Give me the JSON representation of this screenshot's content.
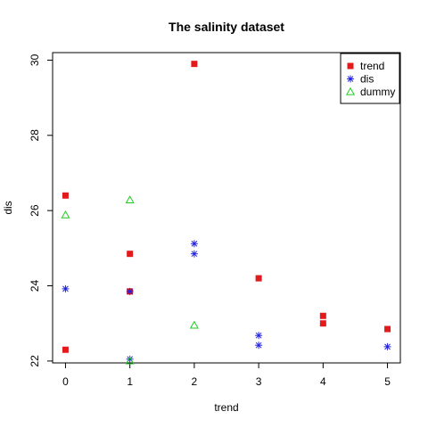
{
  "chart_data": {
    "type": "scatter",
    "title": "The salinity dataset",
    "xlabel": "trend",
    "ylabel": "dis",
    "xlim": [
      -0.2,
      5.2
    ],
    "ylim": [
      21.95,
      30.2
    ],
    "x_ticks": [
      0,
      1,
      2,
      3,
      4,
      5
    ],
    "y_ticks": [
      22,
      24,
      26,
      28,
      30
    ],
    "grid": false,
    "legend_position": "top-right",
    "series": [
      {
        "name": "trend",
        "marker": "filled-square",
        "color": "#e31a1c",
        "points": [
          [
            0,
            26.4
          ],
          [
            0,
            22.3
          ],
          [
            1,
            24.85
          ],
          [
            1,
            23.85
          ],
          [
            2,
            29.9
          ],
          [
            3,
            24.2
          ],
          [
            4,
            23.2
          ],
          [
            4,
            23.0
          ],
          [
            5,
            22.85
          ]
        ]
      },
      {
        "name": "dis",
        "marker": "asterisk",
        "color": "#2222dd",
        "points": [
          [
            0,
            23.92
          ],
          [
            1,
            23.85
          ],
          [
            1,
            22.05
          ],
          [
            2,
            25.12
          ],
          [
            2,
            24.85
          ],
          [
            3,
            22.68
          ],
          [
            3,
            22.42
          ],
          [
            5,
            22.38
          ]
        ]
      },
      {
        "name": "dummy",
        "marker": "open-triangle",
        "color": "#22cc22",
        "points": [
          [
            0,
            25.88
          ],
          [
            1,
            26.28
          ],
          [
            1,
            22.0
          ],
          [
            2,
            22.95
          ]
        ]
      }
    ]
  }
}
